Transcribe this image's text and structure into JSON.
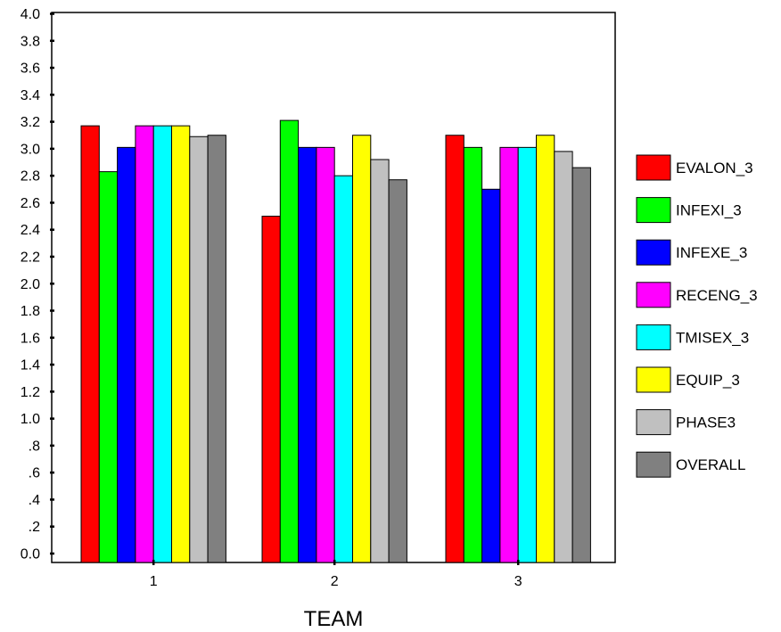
{
  "chart_data": {
    "type": "bar",
    "title": "",
    "xlabel": "TEAM",
    "ylabel": "",
    "ylim": [
      0,
      4.0
    ],
    "y_ticks": [
      "0.0",
      ".2",
      ".4",
      ".6",
      ".8",
      "1.0",
      "1.2",
      "1.4",
      "1.6",
      "1.8",
      "2.0",
      "2.2",
      "2.4",
      "2.6",
      "2.8",
      "3.0",
      "3.2",
      "3.4",
      "3.6",
      "3.8",
      "4.0"
    ],
    "categories": [
      "1",
      "2",
      "3"
    ],
    "grid": false,
    "legend_position": "right",
    "series": [
      {
        "name": "EVALON_3",
        "color": "#ff0000",
        "values": [
          3.17,
          2.5,
          3.1
        ]
      },
      {
        "name": "INFEXI_3",
        "color": "#00ff00",
        "values": [
          2.83,
          3.21,
          3.01
        ]
      },
      {
        "name": "INFEXE_3",
        "color": "#0000ff",
        "values": [
          3.01,
          3.01,
          2.7
        ]
      },
      {
        "name": "RECENG_3",
        "color": "#ff00ff",
        "values": [
          3.17,
          3.01,
          3.01
        ]
      },
      {
        "name": "TMISEX_3",
        "color": "#00ffff",
        "values": [
          3.17,
          2.8,
          3.01
        ]
      },
      {
        "name": "EQUIP_3",
        "color": "#ffff00",
        "values": [
          3.17,
          3.1,
          3.1
        ]
      },
      {
        "name": "PHASE3",
        "color": "#c0c0c0",
        "values": [
          3.09,
          2.92,
          2.98
        ]
      },
      {
        "name": "OVERALL",
        "color": "#808080",
        "values": [
          3.1,
          2.77,
          2.86
        ]
      }
    ]
  }
}
